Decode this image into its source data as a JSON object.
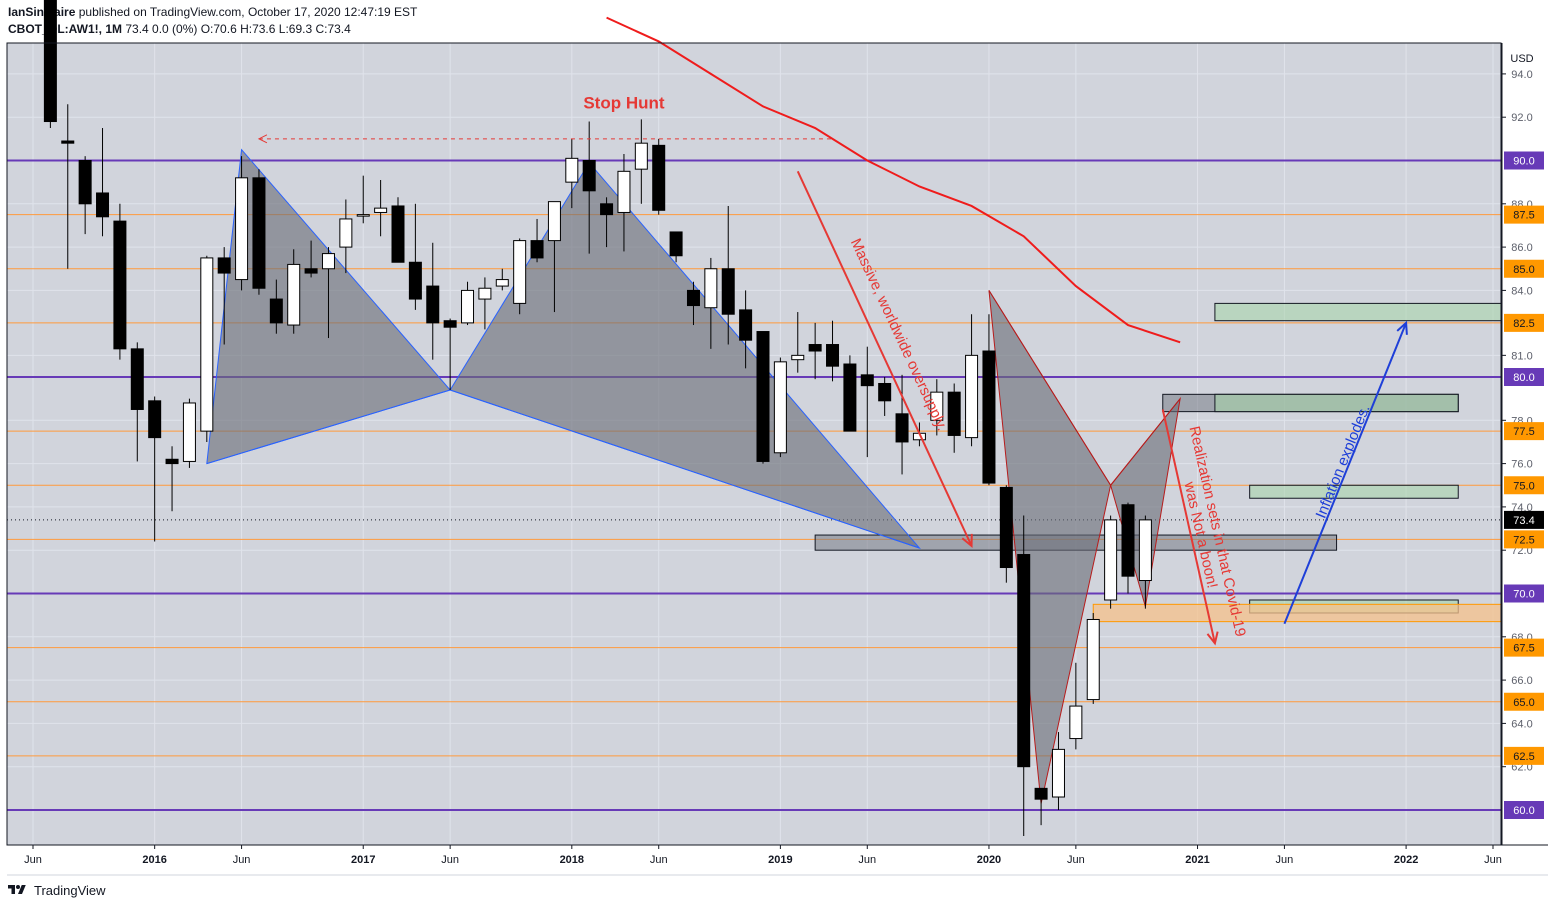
{
  "header": {
    "author": "IanSinclaire",
    "published_line": "published on TradingView.com, October 17, 2020 12:47:19 EST",
    "symbol": "CBOT_DL:AW1!, 1M",
    "quote": "73.4 0.0 (0%) O:70.6 H:73.6 L:69.3 C:73.4"
  },
  "footer": {
    "brand": "TradingView"
  },
  "chart_data": {
    "type": "candlestick",
    "title": "CBOT_DL:AW1!, 1M",
    "currency": "USD",
    "ylim": [
      58.4,
      96.5
    ],
    "y_ticks": [
      62.0,
      64.0,
      66.0,
      68.0,
      72.0,
      74.0,
      76.0,
      78.0,
      81.0,
      84.0,
      86.0,
      88.0,
      92.0,
      94.0
    ],
    "y_tick_labels": [
      "62.0",
      "64.0",
      "66.0",
      "68.0",
      "72.0",
      "74.0",
      "76.0",
      "78.0",
      "81.0",
      "84.0",
      "86.0",
      "88.0",
      "92.0",
      "94.0"
    ],
    "x_ticks": [
      "Jun",
      "2016",
      "Jun",
      "2017",
      "Jun",
      "2018",
      "Jun",
      "2019",
      "Jun",
      "2020",
      "Jun",
      "2021",
      "Jun",
      "2022",
      "Jun"
    ],
    "x_tick_dates": [
      "2015-06",
      "2016-01",
      "2016-06",
      "2017-01",
      "2017-06",
      "2018-01",
      "2018-06",
      "2019-01",
      "2019-06",
      "2020-01",
      "2020-06",
      "2021-01",
      "2021-06",
      "2022-01",
      "2022-06"
    ],
    "grid": true,
    "last_price": 73.4,
    "candles": [
      {
        "t": "2015-07",
        "o": 98.0,
        "h": 99.0,
        "l": 91.5,
        "c": 91.8
      },
      {
        "t": "2015-08",
        "o": 90.9,
        "h": 92.6,
        "l": 85.0,
        "c": 90.8
      },
      {
        "t": "2015-09",
        "o": 90.0,
        "h": 90.2,
        "l": 86.6,
        "c": 88.0
      },
      {
        "t": "2015-10",
        "o": 88.5,
        "h": 91.5,
        "l": 86.5,
        "c": 87.4
      },
      {
        "t": "2015-11",
        "o": 87.2,
        "h": 88.0,
        "l": 80.8,
        "c": 81.3
      },
      {
        "t": "2015-12",
        "o": 81.3,
        "h": 81.6,
        "l": 76.1,
        "c": 78.5
      },
      {
        "t": "2016-01",
        "o": 78.9,
        "h": 79.1,
        "l": 72.4,
        "c": 77.2
      },
      {
        "t": "2016-02",
        "o": 76.2,
        "h": 76.8,
        "l": 73.8,
        "c": 76.0
      },
      {
        "t": "2016-03",
        "o": 76.1,
        "h": 79.0,
        "l": 75.8,
        "c": 78.8
      },
      {
        "t": "2016-04",
        "o": 77.5,
        "h": 85.6,
        "l": 77.0,
        "c": 85.5
      },
      {
        "t": "2016-05",
        "o": 85.5,
        "h": 86.0,
        "l": 81.5,
        "c": 84.8
      },
      {
        "t": "2016-06",
        "o": 84.5,
        "h": 90.2,
        "l": 84.0,
        "c": 89.2
      },
      {
        "t": "2016-07",
        "o": 89.2,
        "h": 89.6,
        "l": 83.8,
        "c": 84.1
      },
      {
        "t": "2016-08",
        "o": 83.6,
        "h": 84.5,
        "l": 82.0,
        "c": 82.5
      },
      {
        "t": "2016-09",
        "o": 82.4,
        "h": 85.9,
        "l": 82.0,
        "c": 85.2
      },
      {
        "t": "2016-10",
        "o": 85.0,
        "h": 86.3,
        "l": 84.6,
        "c": 84.8
      },
      {
        "t": "2016-11",
        "o": 85.0,
        "h": 86.0,
        "l": 81.8,
        "c": 85.7
      },
      {
        "t": "2016-12",
        "o": 86.0,
        "h": 88.2,
        "l": 84.8,
        "c": 87.3
      },
      {
        "t": "2017-01",
        "o": 87.5,
        "h": 89.3,
        "l": 87.1,
        "c": 87.5
      },
      {
        "t": "2017-02",
        "o": 87.6,
        "h": 89.1,
        "l": 86.5,
        "c": 87.8
      },
      {
        "t": "2017-03",
        "o": 87.9,
        "h": 88.3,
        "l": 85.3,
        "c": 85.3
      },
      {
        "t": "2017-04",
        "o": 85.3,
        "h": 88.0,
        "l": 83.1,
        "c": 83.6
      },
      {
        "t": "2017-05",
        "o": 84.2,
        "h": 86.2,
        "l": 80.8,
        "c": 82.5
      },
      {
        "t": "2017-06",
        "o": 82.6,
        "h": 82.7,
        "l": 79.4,
        "c": 82.3
      },
      {
        "t": "2017-07",
        "o": 82.5,
        "h": 84.4,
        "l": 82.4,
        "c": 84.0
      },
      {
        "t": "2017-08",
        "o": 83.6,
        "h": 84.6,
        "l": 82.2,
        "c": 84.1
      },
      {
        "t": "2017-09",
        "o": 84.2,
        "h": 85.0,
        "l": 84.0,
        "c": 84.5
      },
      {
        "t": "2017-10",
        "o": 83.4,
        "h": 86.4,
        "l": 82.9,
        "c": 86.3
      },
      {
        "t": "2017-11",
        "o": 86.3,
        "h": 87.3,
        "l": 85.3,
        "c": 85.5
      },
      {
        "t": "2017-12",
        "o": 86.3,
        "h": 88.1,
        "l": 83.0,
        "c": 88.1
      },
      {
        "t": "2018-01",
        "o": 89.0,
        "h": 91.0,
        "l": 87.8,
        "c": 90.1
      },
      {
        "t": "2018-02",
        "o": 90.0,
        "h": 91.8,
        "l": 85.7,
        "c": 88.6
      },
      {
        "t": "2018-03",
        "o": 88.0,
        "h": 88.3,
        "l": 86.0,
        "c": 87.5
      },
      {
        "t": "2018-04",
        "o": 87.6,
        "h": 90.3,
        "l": 85.8,
        "c": 89.5
      },
      {
        "t": "2018-05",
        "o": 89.6,
        "h": 91.9,
        "l": 88.0,
        "c": 90.8
      },
      {
        "t": "2018-06",
        "o": 90.7,
        "h": 91.0,
        "l": 87.5,
        "c": 87.7
      },
      {
        "t": "2018-07",
        "o": 86.7,
        "h": 86.7,
        "l": 85.3,
        "c": 85.6
      },
      {
        "t": "2018-08",
        "o": 84.0,
        "h": 84.4,
        "l": 82.4,
        "c": 83.3
      },
      {
        "t": "2018-09",
        "o": 83.2,
        "h": 85.5,
        "l": 81.3,
        "c": 85.0
      },
      {
        "t": "2018-10",
        "o": 85.0,
        "h": 87.9,
        "l": 81.5,
        "c": 82.9
      },
      {
        "t": "2018-11",
        "o": 83.1,
        "h": 84.0,
        "l": 80.4,
        "c": 81.7
      },
      {
        "t": "2018-12",
        "o": 82.1,
        "h": 82.1,
        "l": 76.0,
        "c": 76.1
      },
      {
        "t": "2019-01",
        "o": 76.5,
        "h": 80.9,
        "l": 76.3,
        "c": 80.7
      },
      {
        "t": "2019-02",
        "o": 80.8,
        "h": 83.0,
        "l": 80.2,
        "c": 81.0
      },
      {
        "t": "2019-03",
        "o": 81.5,
        "h": 82.5,
        "l": 79.9,
        "c": 81.2
      },
      {
        "t": "2019-04",
        "o": 81.5,
        "h": 82.6,
        "l": 79.8,
        "c": 80.5
      },
      {
        "t": "2019-05",
        "o": 80.6,
        "h": 81.0,
        "l": 77.5,
        "c": 77.5
      },
      {
        "t": "2019-06",
        "o": 80.1,
        "h": 81.4,
        "l": 76.3,
        "c": 79.6
      },
      {
        "t": "2019-07",
        "o": 79.7,
        "h": 80.0,
        "l": 78.2,
        "c": 78.9
      },
      {
        "t": "2019-08",
        "o": 78.3,
        "h": 80.1,
        "l": 75.5,
        "c": 77.0
      },
      {
        "t": "2019-09",
        "o": 77.1,
        "h": 77.9,
        "l": 76.8,
        "c": 77.4
      },
      {
        "t": "2019-10",
        "o": 78.0,
        "h": 79.9,
        "l": 77.3,
        "c": 79.3
      },
      {
        "t": "2019-11",
        "o": 79.3,
        "h": 79.7,
        "l": 76.5,
        "c": 77.3
      },
      {
        "t": "2019-12",
        "o": 77.2,
        "h": 82.9,
        "l": 76.8,
        "c": 81.0
      },
      {
        "t": "2020-01",
        "o": 81.2,
        "h": 82.9,
        "l": 75.0,
        "c": 75.1
      },
      {
        "t": "2020-02",
        "o": 74.9,
        "h": 75.0,
        "l": 70.5,
        "c": 71.2
      },
      {
        "t": "2020-03",
        "o": 71.8,
        "h": 73.6,
        "l": 58.8,
        "c": 62.0
      },
      {
        "t": "2020-04",
        "o": 61.0,
        "h": 61.0,
        "l": 59.3,
        "c": 60.5
      },
      {
        "t": "2020-05",
        "o": 60.6,
        "h": 63.6,
        "l": 60.0,
        "c": 62.8
      },
      {
        "t": "2020-06",
        "o": 63.3,
        "h": 66.8,
        "l": 62.8,
        "c": 64.8
      },
      {
        "t": "2020-07",
        "o": 65.1,
        "h": 69.1,
        "l": 64.9,
        "c": 68.8
      },
      {
        "t": "2020-08",
        "o": 69.7,
        "h": 73.6,
        "l": 69.3,
        "c": 73.4
      },
      {
        "t": "2020-09",
        "o": 74.1,
        "h": 74.2,
        "l": 70.0,
        "c": 70.8
      },
      {
        "t": "2020-10",
        "o": 70.6,
        "h": 73.6,
        "l": 69.3,
        "c": 73.4
      }
    ],
    "moving_average": [
      {
        "t": "2018-03",
        "v": 96.6
      },
      {
        "t": "2018-06",
        "v": 95.5
      },
      {
        "t": "2018-09",
        "v": 94.0
      },
      {
        "t": "2018-12",
        "v": 92.5
      },
      {
        "t": "2019-03",
        "v": 91.5
      },
      {
        "t": "2019-06",
        "v": 90.0
      },
      {
        "t": "2019-09",
        "v": 88.8
      },
      {
        "t": "2019-12",
        "v": 87.9
      },
      {
        "t": "2020-03",
        "v": 86.5
      },
      {
        "t": "2020-06",
        "v": 84.2
      },
      {
        "t": "2020-09",
        "v": 82.4
      },
      {
        "t": "2020-12",
        "v": 81.6
      }
    ],
    "horizontal_levels": {
      "major": [
        90.0,
        80.0,
        70.0,
        60.0
      ],
      "minor": [
        87.5,
        85.0,
        82.5,
        77.5,
        75.0,
        72.5,
        67.5,
        65.0,
        62.5
      ],
      "axis_badges": [
        "90.0",
        "87.5",
        "85.0",
        "82.5",
        "80.0",
        "77.5",
        "75.0",
        "72.5",
        "70.0",
        "67.5",
        "65.0",
        "62.5",
        "60.0"
      ]
    },
    "zones": [
      {
        "t0": "2019-03",
        "t1": "2021-09",
        "y0": 72.0,
        "y1": 72.7,
        "kind": "gray"
      },
      {
        "t0": "2020-11",
        "t1": "2022-04",
        "y0": 78.4,
        "y1": 79.2,
        "kind": "gray"
      },
      {
        "t0": "2021-02",
        "t1": "2022-04",
        "y0": 78.4,
        "y1": 79.2,
        "kind": "green"
      },
      {
        "t0": "2021-02",
        "t1": "2022-08",
        "y0": 82.6,
        "y1": 83.4,
        "kind": "green"
      },
      {
        "t0": "2021-04",
        "t1": "2022-04",
        "y0": 74.4,
        "y1": 75.0,
        "kind": "green"
      },
      {
        "t0": "2021-04",
        "t1": "2022-04",
        "y0": 69.1,
        "y1": 69.7,
        "kind": "green"
      },
      {
        "t0": "2020-07",
        "t1": "2022-08",
        "y0": 68.7,
        "y1": 69.5,
        "kind": "orange"
      }
    ],
    "patterns": [
      {
        "kind": "bullish",
        "points": [
          {
            "t": "2016-04",
            "v": 76.0
          },
          {
            "t": "2016-06",
            "v": 90.5
          },
          {
            "t": "2017-06",
            "v": 79.4
          },
          {
            "t": "2018-02",
            "v": 89.9
          },
          {
            "t": "2019-09",
            "v": 72.1
          }
        ]
      },
      {
        "kind": "bearish",
        "points": [
          {
            "t": "2020-01",
            "v": 84.0
          },
          {
            "t": "2020-04",
            "v": 60.3
          },
          {
            "t": "2020-08",
            "v": 75.0
          },
          {
            "t": "2020-10",
            "v": 69.4
          },
          {
            "t": "2020-12",
            "v": 79.0
          }
        ]
      }
    ],
    "annotations": {
      "stop_hunt": {
        "text": "Stop Hunt",
        "line_from": "2016-07",
        "line_to": "2019-04",
        "value": 91.0,
        "label_t": "2018-04",
        "label_v": 92.4
      },
      "oversupply": {
        "text": "Massive, worldwide oversupply.",
        "t0": "2019-02",
        "v0": 89.5,
        "t1": "2019-12",
        "v1": 72.2
      },
      "covid": {
        "text": "Realization sets in that Covid-19 was Not a boon!",
        "t0": "2020-11",
        "v0": 78.5,
        "t1": "2021-02",
        "v1": 67.7
      },
      "inflation": {
        "text": "Inflation explodes.",
        "t0": "2021-06",
        "v0": 68.6,
        "t1": "2022-01",
        "v1": 82.5
      }
    }
  }
}
